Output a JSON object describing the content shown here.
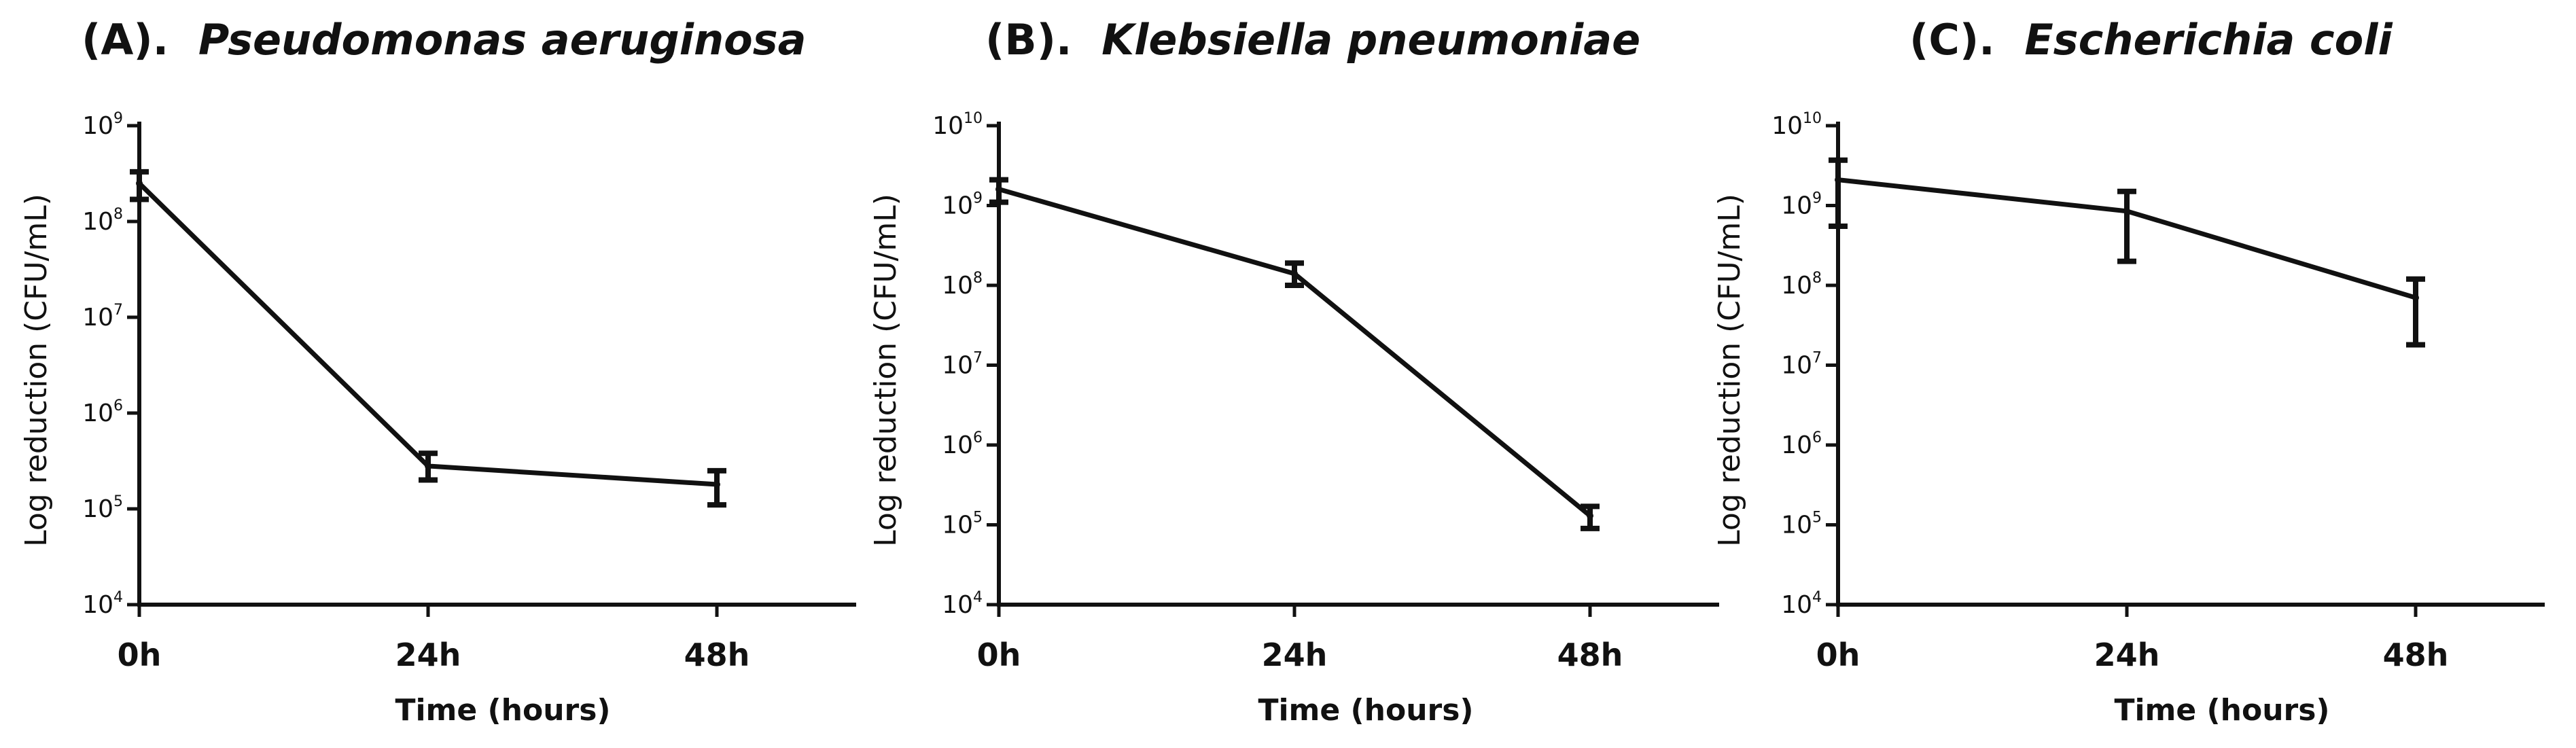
{
  "chart_data": [
    {
      "type": "line",
      "panel_label": "(A).",
      "title": "Pseudomonas aeruginosa",
      "xlabel": "Time (hours)",
      "ylabel": "Log reduction (CFU/mL)",
      "yscale": "log",
      "ylim": [
        10000,
        1000000000
      ],
      "yticks": [
        4,
        5,
        6,
        7,
        8,
        9
      ],
      "categories": [
        "0h",
        "24h",
        "48h"
      ],
      "series": [
        {
          "values": [
            250000000,
            280000,
            180000
          ],
          "err_low": [
            170000000,
            200000,
            110000
          ],
          "err_high": [
            330000000,
            380000,
            250000
          ]
        }
      ]
    },
    {
      "type": "line",
      "panel_label": "(B).",
      "title": "Klebsiella pneumoniae",
      "xlabel": "Time (hours)",
      "ylabel": "Log reduction (CFU/mL)",
      "yscale": "log",
      "ylim": [
        10000,
        10000000000
      ],
      "yticks": [
        4,
        5,
        6,
        7,
        8,
        9,
        10
      ],
      "categories": [
        "0h",
        "24h",
        "48h"
      ],
      "series": [
        {
          "values": [
            1600000000,
            140000000,
            130000
          ],
          "err_low": [
            1100000000,
            100000000,
            90000
          ],
          "err_high": [
            2100000000,
            190000000,
            170000
          ]
        }
      ]
    },
    {
      "type": "line",
      "panel_label": "(C).",
      "title": "Escherichia coli",
      "xlabel": "Time (hours)",
      "ylabel": "Log reduction (CFU/mL)",
      "yscale": "log",
      "ylim": [
        10000,
        10000000000
      ],
      "yticks": [
        4,
        5,
        6,
        7,
        8,
        9,
        10
      ],
      "categories": [
        "0h",
        "24h",
        "48h"
      ],
      "series": [
        {
          "values": [
            2100000000,
            850000000,
            70000000
          ],
          "err_low": [
            550000000,
            200000000,
            18000000
          ],
          "err_high": [
            3700000000,
            1500000000,
            120000000
          ]
        }
      ]
    }
  ]
}
